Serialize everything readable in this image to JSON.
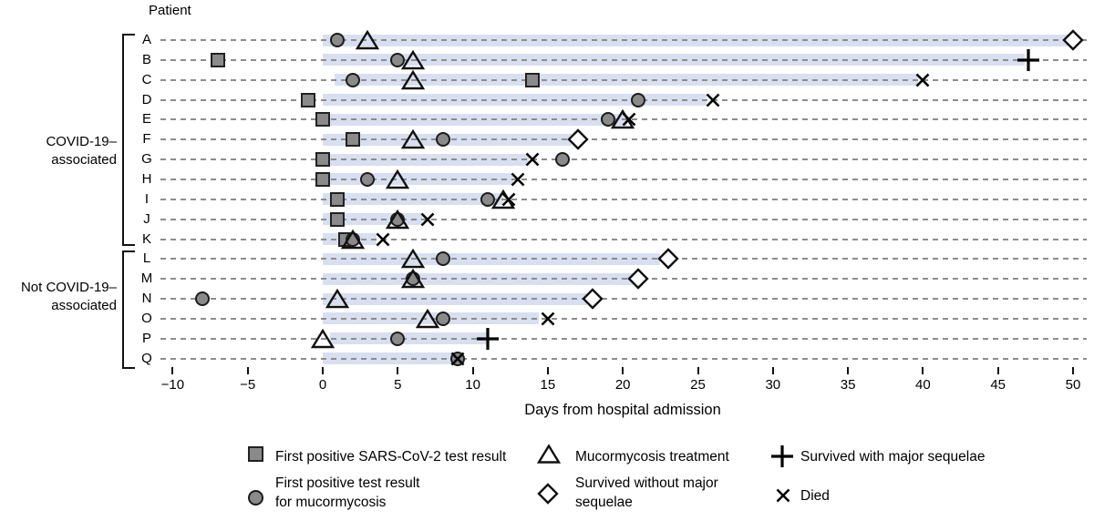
{
  "colors": {
    "marker_fill": "#8a8a8a",
    "marker_stroke": "#1c1c1c",
    "outline_stroke": "#111111",
    "bar_fill": "#d8dff0",
    "dash_line": "#8d8d8d",
    "text": "#000000"
  },
  "y_axis_title": "Patient",
  "x_axis_title": "Days from hospital admission",
  "groups": [
    {
      "label": "COVID-19–\nassociated",
      "patients": "A–K"
    },
    {
      "label": "Not COVID-19–\nassociated",
      "patients": "L–Q"
    }
  ],
  "legend": {
    "items": [
      {
        "marker": "square",
        "label": "First positive SARS-CoV-2 test result"
      },
      {
        "marker": "circle",
        "label": "First positive test result\nfor mucormycosis"
      },
      {
        "marker": "triangle",
        "label": "Mucormycosis treatment"
      },
      {
        "marker": "diamond",
        "label": "Survived without major\nsequelae"
      },
      {
        "marker": "plus",
        "label": "Survived with major sequelae"
      },
      {
        "marker": "x",
        "label": "Died"
      }
    ]
  },
  "chart_data": {
    "type": "scatter",
    "title": "",
    "xlabel": "Days from hospital admission",
    "ylabel": "Patient",
    "xlim": [
      -12,
      51
    ],
    "grid": "dashed horizontal row lines",
    "legend_position": "bottom",
    "x_ticks": [
      {
        "v": -10,
        "label": "−10"
      },
      {
        "v": -5,
        "label": "−5"
      },
      {
        "v": 0,
        "label": "0"
      },
      {
        "v": 5,
        "label": "5"
      },
      {
        "v": 10,
        "label": "10"
      },
      {
        "v": 15,
        "label": "15"
      },
      {
        "v": 20,
        "label": "20"
      },
      {
        "v": 25,
        "label": "25"
      },
      {
        "v": 30,
        "label": "30"
      },
      {
        "v": 35,
        "label": "35"
      },
      {
        "v": 40,
        "label": "40"
      },
      {
        "v": 45,
        "label": "45"
      },
      {
        "v": 50,
        "label": "50"
      }
    ],
    "event_types": {
      "sars_pos": "First positive SARS-CoV-2 test result",
      "mucor_pos": "First positive test result for mucormycosis",
      "treatment": "Mucormycosis treatment",
      "survived_no_sequelae": "Survived without major sequelae",
      "survived_major_sequelae": "Survived with major sequelae",
      "died": "Died"
    },
    "patients": [
      {
        "id": "A",
        "group": 0,
        "bar": [
          0,
          49.8
        ],
        "events": [
          {
            "t": "mucor_pos",
            "day": 1
          },
          {
            "t": "treatment",
            "day": 3
          },
          {
            "t": "survived_no_sequelae",
            "day": 50
          }
        ]
      },
      {
        "id": "B",
        "group": 0,
        "bar": [
          0,
          46.8
        ],
        "events": [
          {
            "t": "sars_pos",
            "day": -7
          },
          {
            "t": "mucor_pos",
            "day": 5
          },
          {
            "t": "treatment",
            "day": 6
          },
          {
            "t": "survived_major_sequelae",
            "day": 47
          }
        ]
      },
      {
        "id": "C",
        "group": 0,
        "bar": [
          0.8,
          39.7
        ],
        "events": [
          {
            "t": "mucor_pos",
            "day": 2
          },
          {
            "t": "treatment",
            "day": 6
          },
          {
            "t": "sars_pos",
            "day": 14
          },
          {
            "t": "died",
            "day": 40
          }
        ]
      },
      {
        "id": "D",
        "group": 0,
        "bar": [
          0,
          25.6
        ],
        "events": [
          {
            "t": "sars_pos",
            "day": -1
          },
          {
            "t": "mucor_pos",
            "day": 21
          },
          {
            "t": "died",
            "day": 26
          }
        ]
      },
      {
        "id": "E",
        "group": 0,
        "bar": [
          0,
          20.3
        ],
        "events": [
          {
            "t": "sars_pos",
            "day": 0
          },
          {
            "t": "mucor_pos",
            "day": 19
          },
          {
            "t": "treatment",
            "day": 20
          },
          {
            "t": "died",
            "day": 20.4
          }
        ]
      },
      {
        "id": "F",
        "group": 0,
        "bar": [
          0,
          16.6
        ],
        "events": [
          {
            "t": "sars_pos",
            "day": 2
          },
          {
            "t": "treatment",
            "day": 6
          },
          {
            "t": "mucor_pos",
            "day": 8
          },
          {
            "t": "survived_no_sequelae",
            "day": 17
          }
        ]
      },
      {
        "id": "G",
        "group": 0,
        "bar": [
          0,
          13.7
        ],
        "events": [
          {
            "t": "sars_pos",
            "day": 0
          },
          {
            "t": "died",
            "day": 14
          },
          {
            "t": "mucor_pos",
            "day": 16
          }
        ]
      },
      {
        "id": "H",
        "group": 0,
        "bar": [
          0,
          12.7
        ],
        "events": [
          {
            "t": "sars_pos",
            "day": 0
          },
          {
            "t": "mucor_pos",
            "day": 3
          },
          {
            "t": "treatment",
            "day": 5
          },
          {
            "t": "died",
            "day": 13
          }
        ]
      },
      {
        "id": "I",
        "group": 0,
        "bar": [
          0,
          12
        ],
        "events": [
          {
            "t": "sars_pos",
            "day": 1
          },
          {
            "t": "mucor_pos",
            "day": 11
          },
          {
            "t": "treatment",
            "day": 12
          },
          {
            "t": "died",
            "day": 12.4
          }
        ]
      },
      {
        "id": "J",
        "group": 0,
        "bar": [
          0,
          6.6
        ],
        "events": [
          {
            "t": "sars_pos",
            "day": 1
          },
          {
            "t": "mucor_pos",
            "day": 5
          },
          {
            "t": "treatment",
            "day": 5
          },
          {
            "t": "died",
            "day": 7
          }
        ]
      },
      {
        "id": "K",
        "group": 0,
        "bar": [
          0,
          3.6
        ],
        "events": [
          {
            "t": "sars_pos",
            "day": 1.5
          },
          {
            "t": "mucor_pos",
            "day": 2
          },
          {
            "t": "treatment",
            "day": 2
          },
          {
            "t": "died",
            "day": 4
          }
        ]
      },
      {
        "id": "L",
        "group": 1,
        "bar": [
          0,
          22.5
        ],
        "events": [
          {
            "t": "treatment",
            "day": 6
          },
          {
            "t": "mucor_pos",
            "day": 8
          },
          {
            "t": "survived_no_sequelae",
            "day": 23
          }
        ]
      },
      {
        "id": "M",
        "group": 1,
        "bar": [
          0,
          20.7
        ],
        "events": [
          {
            "t": "treatment",
            "day": 6
          },
          {
            "t": "mucor_pos",
            "day": 6
          },
          {
            "t": "survived_no_sequelae",
            "day": 21
          }
        ]
      },
      {
        "id": "N",
        "group": 1,
        "bar": [
          0,
          17.6
        ],
        "events": [
          {
            "t": "mucor_pos",
            "day": -8
          },
          {
            "t": "treatment",
            "day": 1
          },
          {
            "t": "survived_no_sequelae",
            "day": 18
          }
        ]
      },
      {
        "id": "O",
        "group": 1,
        "bar": [
          0,
          14.4
        ],
        "events": [
          {
            "t": "treatment",
            "day": 7
          },
          {
            "t": "mucor_pos",
            "day": 8
          },
          {
            "t": "died",
            "day": 15
          }
        ]
      },
      {
        "id": "P",
        "group": 1,
        "bar": [
          0.5,
          11
        ],
        "events": [
          {
            "t": "treatment",
            "day": 0
          },
          {
            "t": "mucor_pos",
            "day": 5
          },
          {
            "t": "survived_major_sequelae",
            "day": 11
          }
        ]
      },
      {
        "id": "Q",
        "group": 1,
        "bar": [
          0,
          8.9
        ],
        "events": [
          {
            "t": "mucor_pos",
            "day": 9
          },
          {
            "t": "died",
            "day": 9
          }
        ]
      }
    ]
  }
}
